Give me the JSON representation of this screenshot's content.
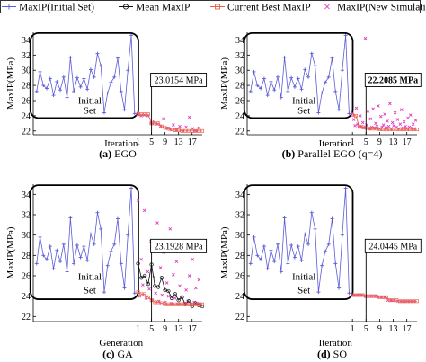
{
  "legend": [
    {
      "label": "MaxIP(Initial Set)",
      "color": "#5b5bd6",
      "marker": "plus-line"
    },
    {
      "label": "Mean MaxIP",
      "color": "#111111",
      "marker": "circle-line"
    },
    {
      "label": "Current Best MaxIP",
      "color": "#e8604d",
      "marker": "square-line"
    },
    {
      "label": "MaxIP(New Simulation)",
      "color": "#e040c0",
      "marker": "x"
    }
  ],
  "colors": {
    "initial": "#5b5bd6",
    "mean": "#111111",
    "best": "#e8604d",
    "newsim": "#e040c0",
    "axis": "#000000"
  },
  "chart_data": [
    {
      "type": "line",
      "caption_letter": "(a)",
      "caption_text": "EGO",
      "xlabel": "Iteration",
      "ylabel": "MaxIP(MPa)",
      "ylim": [
        21.5,
        35
      ],
      "yticks": [
        22,
        24,
        26,
        28,
        30,
        32,
        34
      ],
      "xticks": [
        1,
        5,
        9,
        13,
        17
      ],
      "xlim": [
        -30,
        20
      ],
      "box_text": "Initial\nSet",
      "annotation": "23.0154 MPa",
      "annotation_bold": false,
      "initial": [
        27.2,
        29.8,
        28.0,
        27.6,
        28.9,
        26.7,
        28.5,
        27.4,
        29.1,
        26.4,
        31.7,
        27.2,
        29.0,
        27.8,
        28.9,
        27.5,
        30.1,
        29.1,
        32.2,
        30.6,
        24.4,
        27.0,
        28.4,
        29.1,
        31.6,
        27.2,
        24.8,
        30.0,
        34.6,
        24.3
      ],
      "best": [
        24.2,
        24.2,
        24.2,
        24.2,
        23.0,
        23.0,
        23.0,
        22.6,
        22.4,
        22.3,
        22.2,
        22.1,
        22.1,
        22.0,
        22.0,
        22.0,
        22.0,
        22.0,
        22.0,
        22.0
      ],
      "newsim": [
        24.2,
        24.0,
        24.1,
        24.0,
        23.0,
        23.2,
        22.9,
        22.6,
        23.6,
        22.4,
        22.2,
        22.8,
        22.1,
        22.6,
        22.0,
        22.5,
        23.8,
        22.3,
        22.0,
        22.4
      ],
      "marker_x": 5
    },
    {
      "type": "line",
      "caption_letter": "(b)",
      "caption_text": "Parallel EGO (q=4)",
      "xlabel": "Iteration",
      "ylabel": "MaxIP(MPa)",
      "ylim": [
        21.5,
        35
      ],
      "yticks": [
        22,
        24,
        26,
        28,
        30,
        32,
        34
      ],
      "xticks": [
        1,
        5,
        9,
        13,
        17
      ],
      "xlim": [
        -30,
        20
      ],
      "box_text": "Initial\nSet",
      "annotation": "22.2085 MPa",
      "annotation_bold": true,
      "initial": [
        27.2,
        29.8,
        28.0,
        27.6,
        28.9,
        26.7,
        28.5,
        27.4,
        29.1,
        26.4,
        31.7,
        27.2,
        29.0,
        27.8,
        28.9,
        27.5,
        30.1,
        29.1,
        32.2,
        30.6,
        24.4,
        27.0,
        28.4,
        29.1,
        31.6,
        27.2,
        24.8,
        30.0,
        34.6,
        24.3
      ],
      "best": [
        24.1,
        24.0,
        22.6,
        22.5,
        22.4,
        22.3,
        22.3,
        22.3,
        22.2,
        22.2,
        22.2,
        22.2,
        22.2,
        22.2,
        22.2,
        22.2,
        22.2,
        22.2,
        22.2,
        22.2
      ],
      "newsim": [
        24.3,
        23.5,
        22.7,
        25.0,
        22.9,
        22.5,
        24.0,
        22.6,
        23.1,
        22.4,
        34.2,
        22.8,
        24.6,
        22.3,
        23.6,
        22.5,
        24.9,
        22.4,
        23.0,
        22.6,
        25.3,
        22.3,
        23.9,
        22.5,
        22.8,
        24.2,
        22.4,
        23.3,
        22.6,
        25.6,
        22.3,
        23.1,
        22.7,
        24.4,
        22.5,
        23.5,
        22.3,
        22.9,
        24.8,
        22.4,
        23.2,
        22.6,
        22.3,
        23.7,
        22.5,
        24.1,
        22.4,
        22.9,
        22.3,
        23.4
      ],
      "marker_x": 5
    },
    {
      "type": "line",
      "caption_letter": "(c)",
      "caption_text": "GA",
      "xlabel": "Generation",
      "ylabel": "MaxIP(MPa)",
      "ylim": [
        21.5,
        35
      ],
      "yticks": [
        22,
        24,
        26,
        28,
        30,
        32,
        34
      ],
      "xticks": [
        1,
        5,
        9,
        13,
        17
      ],
      "xlim": [
        -30,
        20
      ],
      "box_text": "Initial\nSet",
      "annotation": "23.1928 MPa",
      "annotation_bold": false,
      "initial": [
        27.2,
        29.8,
        28.0,
        27.6,
        28.9,
        26.7,
        28.5,
        27.4,
        29.1,
        26.4,
        31.7,
        27.2,
        29.0,
        27.8,
        28.9,
        27.5,
        30.1,
        29.1,
        32.2,
        30.6,
        24.4,
        27.0,
        28.4,
        29.1,
        31.6,
        27.2,
        24.8,
        30.0,
        34.6,
        24.3
      ],
      "mean": [
        27.2,
        25.8,
        26.0,
        25.2,
        27.1,
        25.0,
        24.9,
        25.8,
        24.6,
        24.5,
        23.8,
        24.2,
        23.6,
        23.9,
        23.2,
        23.5,
        23.0,
        23.3,
        23.1,
        23.0
      ],
      "best": [
        24.4,
        24.2,
        24.2,
        23.9,
        23.6,
        23.4,
        23.4,
        23.3,
        23.2,
        23.2,
        23.2,
        23.2,
        23.2,
        23.2,
        23.2,
        23.2,
        23.2,
        23.2,
        23.2,
        23.2
      ],
      "newsim": [
        33.4,
        24.0,
        27.6,
        25.1,
        32.4,
        23.8,
        26.4,
        24.7,
        29.4,
        23.6,
        25.9,
        24.3,
        31.2,
        23.5,
        26.8,
        24.1,
        28.3,
        23.4,
        25.3,
        24.0,
        30.6,
        23.3,
        26.1,
        23.8,
        27.4,
        23.2,
        25.0,
        23.9,
        29.2,
        23.3,
        24.6,
        23.5,
        26.0,
        23.2,
        27.6,
        23.4,
        24.8,
        23.3,
        25.6,
        23.2
      ],
      "marker_x": 5
    },
    {
      "type": "line",
      "caption_letter": "(d)",
      "caption_text": "SO",
      "xlabel": "Iteration",
      "ylabel": "MaxIP(MPa)",
      "ylim": [
        21.5,
        35
      ],
      "yticks": [
        22,
        24,
        26,
        28,
        30,
        32,
        34
      ],
      "xticks": [
        1,
        5,
        9,
        13,
        17
      ],
      "xlim": [
        -30,
        20
      ],
      "box_text": "Initial\nSet",
      "annotation": "24.0445 MPa",
      "annotation_bold": false,
      "initial": [
        27.2,
        29.8,
        28.0,
        27.6,
        28.9,
        26.7,
        28.5,
        27.4,
        29.1,
        26.4,
        31.7,
        27.2,
        29.0,
        27.8,
        28.9,
        27.5,
        30.1,
        29.1,
        32.2,
        30.6,
        24.4,
        27.0,
        28.4,
        29.1,
        31.6,
        27.2,
        24.8,
        30.0,
        34.6,
        24.3
      ],
      "best": [
        24.1,
        24.1,
        24.1,
        24.1,
        24.0,
        24.0,
        24.0,
        24.0,
        23.9,
        23.9,
        23.9,
        23.6,
        23.6,
        23.6,
        23.5,
        23.5,
        23.5,
        23.5,
        23.5,
        23.5
      ],
      "newsim": [
        24.1,
        24.1,
        24.1,
        24.1,
        24.0,
        24.0,
        24.0,
        24.0,
        23.9,
        23.9,
        23.9,
        23.6,
        23.6,
        23.6,
        23.5,
        23.5,
        23.5,
        23.5,
        23.5,
        23.5
      ],
      "marker_x": 5
    }
  ]
}
